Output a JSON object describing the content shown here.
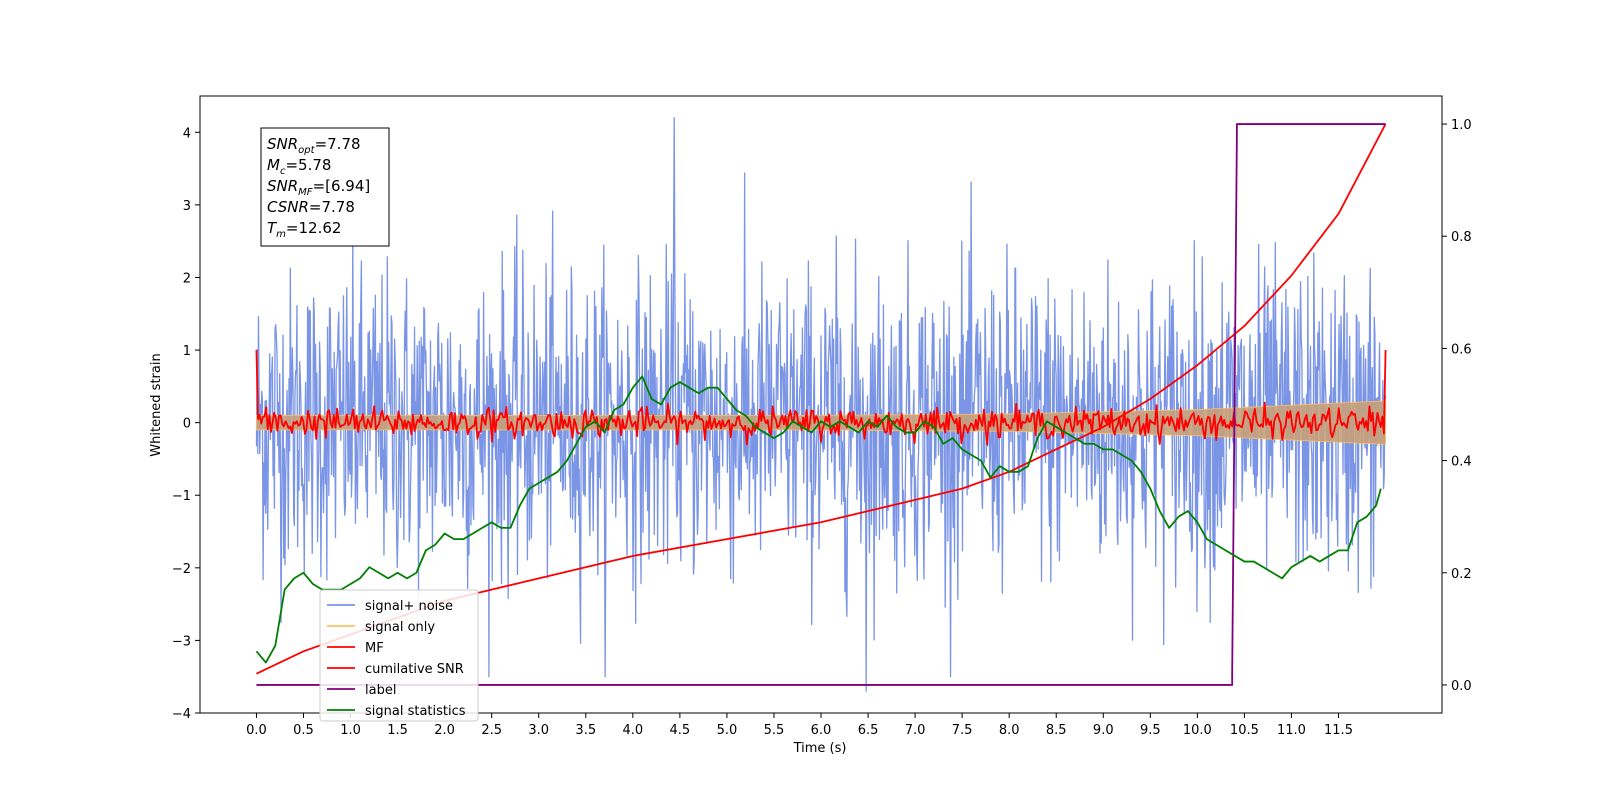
{
  "chart_data": {
    "type": "line",
    "xlabel": "Time (s)",
    "ylabel": "Whitened strain",
    "xlim": [
      -0.6,
      12.6
    ],
    "ylim_left": [
      -4.0,
      4.5
    ],
    "ylim_right": [
      -0.05,
      1.05
    ],
    "x_ticks": [
      "0.0",
      "0.5",
      "1.0",
      "1.5",
      "2.0",
      "2.5",
      "3.0",
      "3.5",
      "4.0",
      "4.5",
      "5.0",
      "5.5",
      "6.0",
      "6.5",
      "7.0",
      "7.5",
      "8.0",
      "8.5",
      "9.0",
      "9.5",
      "10.0",
      "10.5",
      "11.0",
      "11.5"
    ],
    "y_ticks_left": [
      "4",
      "3",
      "2",
      "1",
      "0",
      "−1",
      "−2",
      "−3",
      "−4"
    ],
    "y_ticks_right": [
      "1.0",
      "0.8",
      "0.6",
      "0.4",
      "0.2",
      "0.0"
    ],
    "grid": false,
    "legend_position": "lower-left",
    "legend": [
      {
        "label": "signal+ noise",
        "color": "#7a94e6"
      },
      {
        "label": "signal only",
        "color": "#ffbf66"
      },
      {
        "label": "MF",
        "color": "#ff0000"
      },
      {
        "label": "cumilative SNR",
        "color": "#ff0000"
      },
      {
        "label": "label",
        "color": "#800080"
      },
      {
        "label": "signal statistics",
        "color": "#008000"
      }
    ],
    "info_box": [
      {
        "main": "SNR",
        "sub": "opt",
        "value": "=7.78"
      },
      {
        "main": "M",
        "sub": "c",
        "value": "=5.78"
      },
      {
        "main": "SNR",
        "sub": "MF",
        "value": "=[6.94]"
      },
      {
        "main": "CSNR",
        "sub": "",
        "value": "=7.78"
      },
      {
        "main": "T",
        "sub": "m",
        "value": "=12.62"
      }
    ],
    "series": [
      {
        "name": "signal+ noise",
        "axis": "left",
        "color": "#7a94e6",
        "style": "noise",
        "x_range": [
          0.0,
          12.0
        ],
        "amplitude_envelope": [
          2.5,
          3.5
        ],
        "max_value": 4.2,
        "min_value": -3.7
      },
      {
        "name": "signal only",
        "axis": "left",
        "color": "#ffbf66",
        "style": "chirp-band",
        "x": [
          0.0,
          2.0,
          4.0,
          6.0,
          8.0,
          9.0,
          10.0,
          11.0,
          12.0
        ],
        "half_width": [
          0.1,
          0.1,
          0.1,
          0.1,
          0.12,
          0.15,
          0.18,
          0.24,
          0.3
        ]
      },
      {
        "name": "MF",
        "axis": "left",
        "color": "#ff0000",
        "style": "oscillation",
        "x_range": [
          0.0,
          12.0
        ],
        "start": 1.0,
        "end": 1.0,
        "amplitude": 0.2
      },
      {
        "name": "cumilative SNR",
        "axis": "right",
        "color": "#ff0000",
        "x": [
          0.0,
          0.5,
          1.0,
          2.0,
          3.0,
          4.0,
          5.0,
          6.0,
          7.0,
          7.5,
          8.0,
          8.5,
          9.0,
          9.5,
          10.0,
          10.5,
          11.0,
          11.5,
          12.0
        ],
        "y": [
          0.02,
          0.06,
          0.09,
          0.15,
          0.19,
          0.23,
          0.26,
          0.29,
          0.33,
          0.35,
          0.38,
          0.42,
          0.46,
          0.51,
          0.57,
          0.64,
          0.73,
          0.84,
          1.0
        ]
      },
      {
        "name": "label",
        "axis": "right",
        "color": "#800080",
        "x": [
          0.0,
          10.37,
          10.37,
          10.42,
          10.42,
          12.0
        ],
        "y": [
          0.0,
          0.0,
          0.02,
          0.98,
          1.0,
          1.0
        ]
      },
      {
        "name": "signal statistics",
        "axis": "right",
        "color": "#008000",
        "x": [
          0.0,
          0.1,
          0.2,
          0.3,
          0.4,
          0.5,
          0.6,
          0.7,
          0.8,
          0.9,
          1.0,
          1.1,
          1.2,
          1.3,
          1.4,
          1.5,
          1.6,
          1.7,
          1.8,
          1.9,
          2.0,
          2.1,
          2.2,
          2.3,
          2.4,
          2.5,
          2.6,
          2.7,
          2.8,
          2.9,
          3.0,
          3.1,
          3.2,
          3.3,
          3.4,
          3.5,
          3.6,
          3.7,
          3.8,
          3.9,
          4.0,
          4.1,
          4.2,
          4.3,
          4.4,
          4.5,
          4.6,
          4.7,
          4.8,
          4.9,
          5.0,
          5.1,
          5.2,
          5.3,
          5.4,
          5.5,
          5.6,
          5.7,
          5.8,
          5.9,
          6.0,
          6.1,
          6.2,
          6.3,
          6.4,
          6.5,
          6.6,
          6.7,
          6.8,
          6.9,
          7.0,
          7.1,
          7.2,
          7.3,
          7.4,
          7.5,
          7.6,
          7.7,
          7.8,
          7.9,
          8.0,
          8.1,
          8.2,
          8.3,
          8.4,
          8.5,
          8.6,
          8.7,
          8.8,
          8.9,
          9.0,
          9.1,
          9.2,
          9.3,
          9.4,
          9.5,
          9.6,
          9.7,
          9.8,
          9.9,
          10.0,
          10.1,
          10.2,
          10.3,
          10.4,
          10.5,
          10.6,
          10.7,
          10.8,
          10.9,
          11.0,
          11.1,
          11.2,
          11.3,
          11.4,
          11.5,
          11.6,
          11.7,
          11.8,
          11.9,
          11.95
        ],
        "y": [
          0.06,
          0.04,
          0.07,
          0.17,
          0.19,
          0.2,
          0.18,
          0.17,
          0.17,
          0.17,
          0.18,
          0.19,
          0.21,
          0.2,
          0.19,
          0.2,
          0.19,
          0.2,
          0.24,
          0.25,
          0.27,
          0.26,
          0.26,
          0.27,
          0.28,
          0.29,
          0.28,
          0.28,
          0.32,
          0.35,
          0.36,
          0.37,
          0.38,
          0.4,
          0.43,
          0.46,
          0.47,
          0.45,
          0.49,
          0.5,
          0.53,
          0.55,
          0.51,
          0.5,
          0.53,
          0.54,
          0.53,
          0.52,
          0.53,
          0.53,
          0.51,
          0.49,
          0.48,
          0.46,
          0.45,
          0.44,
          0.45,
          0.47,
          0.46,
          0.45,
          0.47,
          0.46,
          0.47,
          0.46,
          0.45,
          0.47,
          0.46,
          0.48,
          0.46,
          0.45,
          0.45,
          0.47,
          0.46,
          0.43,
          0.44,
          0.42,
          0.41,
          0.4,
          0.37,
          0.39,
          0.38,
          0.38,
          0.39,
          0.44,
          0.47,
          0.46,
          0.45,
          0.44,
          0.43,
          0.43,
          0.42,
          0.42,
          0.41,
          0.4,
          0.38,
          0.35,
          0.31,
          0.28,
          0.3,
          0.31,
          0.29,
          0.26,
          0.25,
          0.24,
          0.23,
          0.22,
          0.22,
          0.21,
          0.2,
          0.19,
          0.21,
          0.22,
          0.23,
          0.22,
          0.23,
          0.24,
          0.24,
          0.29,
          0.3,
          0.32,
          0.35
        ]
      }
    ]
  }
}
